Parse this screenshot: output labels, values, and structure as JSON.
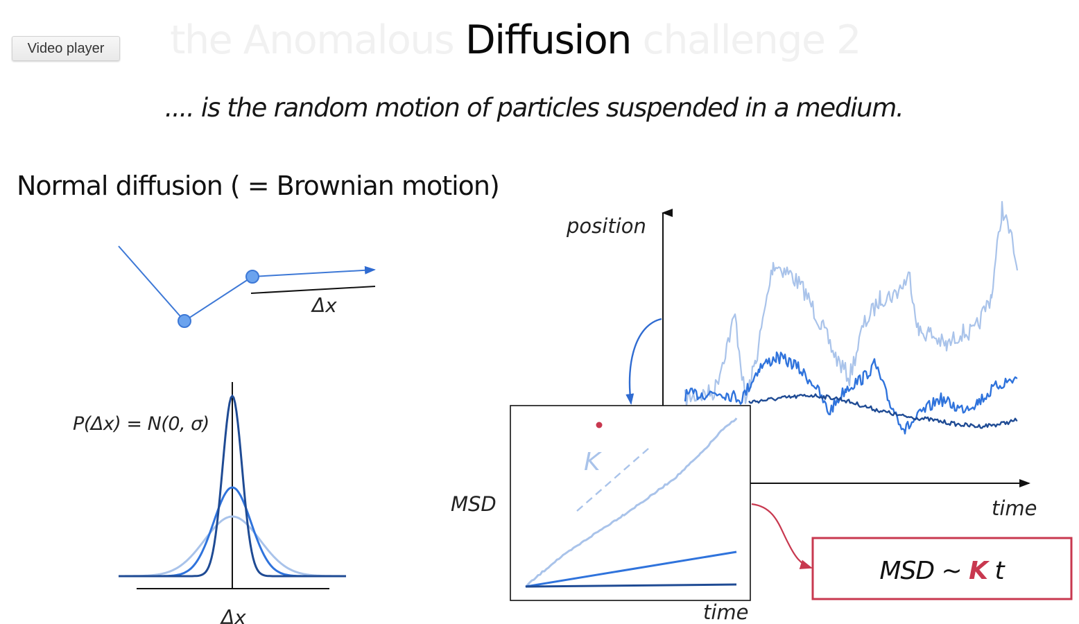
{
  "video_button": {
    "label": "Video player"
  },
  "title": {
    "prefix": "the Anomalous ",
    "main": "Diffusion",
    "suffix": " challenge 2"
  },
  "subtitle": ".... is the random motion of particles suspended in a medium.",
  "section_heading": "Normal diffusion ( = Brownian motion)",
  "step_diagram": {
    "label": "Δx"
  },
  "distribution": {
    "formula": "P(Δx) = N(0, σ)",
    "axis_label": "Δx"
  },
  "trajectories": {
    "y_label": "position",
    "x_label": "time"
  },
  "msd_plot": {
    "y_label": "MSD",
    "x_label": "time",
    "slope_label": "K"
  },
  "msd_law": {
    "prefix": "MSD ~ ",
    "k": "K",
    "suffix": " t"
  },
  "colors": {
    "light": "#a9c3ea",
    "medium": "#2f73dc",
    "dark": "#1f4b94",
    "accent": "#c8384f"
  }
}
